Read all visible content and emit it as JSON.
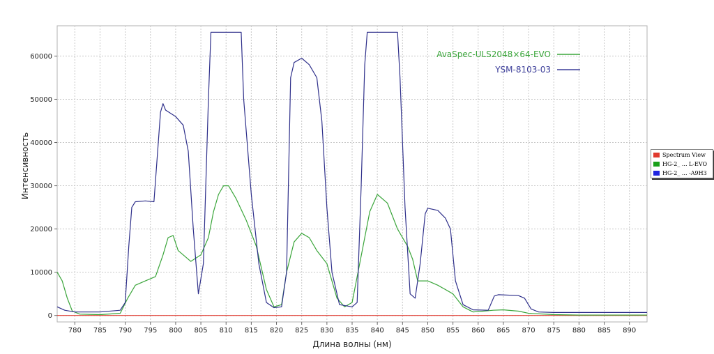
{
  "chart_data": {
    "type": "line",
    "xlabel": "Длина волны (нм)",
    "ylabel": "Интенсивность",
    "xlim": [
      776.5,
      893.5
    ],
    "ylim": [
      -1500,
      67000
    ],
    "xticks": [
      780,
      785,
      790,
      795,
      800,
      805,
      810,
      815,
      820,
      825,
      830,
      835,
      840,
      845,
      850,
      855,
      860,
      865,
      870,
      875,
      880,
      885,
      890
    ],
    "yticks": [
      0,
      10000,
      20000,
      30000,
      40000,
      50000,
      60000
    ],
    "grid": true,
    "legend_position": "top-right",
    "series": [
      {
        "name": "AvaSpec-ULS2048×64-EVO",
        "color": "#3aa53a",
        "points": [
          [
            776.5,
            10000
          ],
          [
            777.5,
            8000
          ],
          [
            778.5,
            4000
          ],
          [
            779.5,
            1000
          ],
          [
            781,
            300
          ],
          [
            785,
            200
          ],
          [
            789,
            500
          ],
          [
            790.5,
            4000
          ],
          [
            792,
            7000
          ],
          [
            794,
            8000
          ],
          [
            796,
            9000
          ],
          [
            797.5,
            14000
          ],
          [
            798.5,
            18000
          ],
          [
            799.5,
            18500
          ],
          [
            800.5,
            15000
          ],
          [
            803,
            12500
          ],
          [
            805,
            14000
          ],
          [
            806.5,
            18000
          ],
          [
            807.5,
            24000
          ],
          [
            808.5,
            28000
          ],
          [
            809.5,
            30000
          ],
          [
            810.5,
            30000
          ],
          [
            812,
            27000
          ],
          [
            814,
            22000
          ],
          [
            816,
            16000
          ],
          [
            818,
            6000
          ],
          [
            819.5,
            2000
          ],
          [
            821,
            2500
          ],
          [
            822,
            10000
          ],
          [
            823.5,
            17000
          ],
          [
            825,
            19000
          ],
          [
            826.5,
            18000
          ],
          [
            828,
            15000
          ],
          [
            830,
            12000
          ],
          [
            832,
            4000
          ],
          [
            833.5,
            2000
          ],
          [
            835,
            3000
          ],
          [
            837,
            15000
          ],
          [
            838.5,
            24000
          ],
          [
            840,
            28000
          ],
          [
            842,
            26000
          ],
          [
            844,
            20000
          ],
          [
            846,
            16000
          ],
          [
            847,
            13000
          ],
          [
            848,
            8000
          ],
          [
            850,
            8000
          ],
          [
            852,
            7000
          ],
          [
            855,
            5000
          ],
          [
            857,
            2000
          ],
          [
            859,
            800
          ],
          [
            861,
            1000
          ],
          [
            863,
            1200
          ],
          [
            865,
            1300
          ],
          [
            868,
            1000
          ],
          [
            870,
            500
          ],
          [
            875,
            200
          ],
          [
            880,
            100
          ],
          [
            893.5,
            100
          ]
        ]
      },
      {
        "name": "YSM-8103-03",
        "color": "#2e2f8a",
        "points": [
          [
            776.5,
            2000
          ],
          [
            778,
            1200
          ],
          [
            780,
            800
          ],
          [
            785,
            800
          ],
          [
            789,
            1200
          ],
          [
            790,
            3000
          ],
          [
            790.7,
            16000
          ],
          [
            791.3,
            25000
          ],
          [
            792,
            26300
          ],
          [
            794,
            26500
          ],
          [
            795.7,
            26300
          ],
          [
            797,
            47000
          ],
          [
            797.5,
            49000
          ],
          [
            798,
            47500
          ],
          [
            800,
            46000
          ],
          [
            801.5,
            44000
          ],
          [
            802.5,
            38000
          ],
          [
            803.5,
            20000
          ],
          [
            804.5,
            5000
          ],
          [
            805.5,
            12000
          ],
          [
            806.5,
            50000
          ],
          [
            807,
            65500
          ],
          [
            813,
            65500
          ],
          [
            813.5,
            50000
          ],
          [
            815,
            28000
          ],
          [
            816.5,
            12000
          ],
          [
            818,
            3000
          ],
          [
            819.5,
            1800
          ],
          [
            821,
            2000
          ],
          [
            822,
            10000
          ],
          [
            822.8,
            55000
          ],
          [
            823.5,
            58500
          ],
          [
            825,
            59500
          ],
          [
            826.5,
            58000
          ],
          [
            828,
            55000
          ],
          [
            829,
            45000
          ],
          [
            830,
            25000
          ],
          [
            831,
            10000
          ],
          [
            832.5,
            2500
          ],
          [
            835,
            2000
          ],
          [
            836,
            3000
          ],
          [
            836.8,
            30000
          ],
          [
            837.5,
            58000
          ],
          [
            838,
            65500
          ],
          [
            844,
            65500
          ],
          [
            844.5,
            55000
          ],
          [
            845.5,
            25000
          ],
          [
            846.5,
            5000
          ],
          [
            847.5,
            4000
          ],
          [
            848.5,
            12000
          ],
          [
            849.5,
            23500
          ],
          [
            850,
            24800
          ],
          [
            852,
            24300
          ],
          [
            853.5,
            22500
          ],
          [
            854.5,
            20000
          ],
          [
            855.5,
            8000
          ],
          [
            857,
            2500
          ],
          [
            859,
            1300
          ],
          [
            862,
            1200
          ],
          [
            863.2,
            4500
          ],
          [
            864,
            4800
          ],
          [
            868,
            4600
          ],
          [
            869.2,
            4000
          ],
          [
            870.5,
            1500
          ],
          [
            872,
            800
          ],
          [
            875,
            700
          ],
          [
            893.5,
            700
          ]
        ]
      },
      {
        "name": "Spectrum View",
        "color": "#e03a2f",
        "points": [
          [
            776.5,
            0
          ],
          [
            893.5,
            0
          ]
        ]
      }
    ],
    "in_plot_legend": [
      {
        "label": "AvaSpec-ULS2048×64-EVO",
        "color": "#3aa53a"
      },
      {
        "label": "YSM-8103-03",
        "color": "#3b3d99"
      }
    ],
    "side_legend": [
      {
        "label": "Spectrum View",
        "color": "#e03a2f"
      },
      {
        "label": "HG-2_ ... L-EVO",
        "color": "#1aa01a"
      },
      {
        "label": "HG-2_ ... -A9H3",
        "color": "#1f24e0"
      }
    ]
  }
}
